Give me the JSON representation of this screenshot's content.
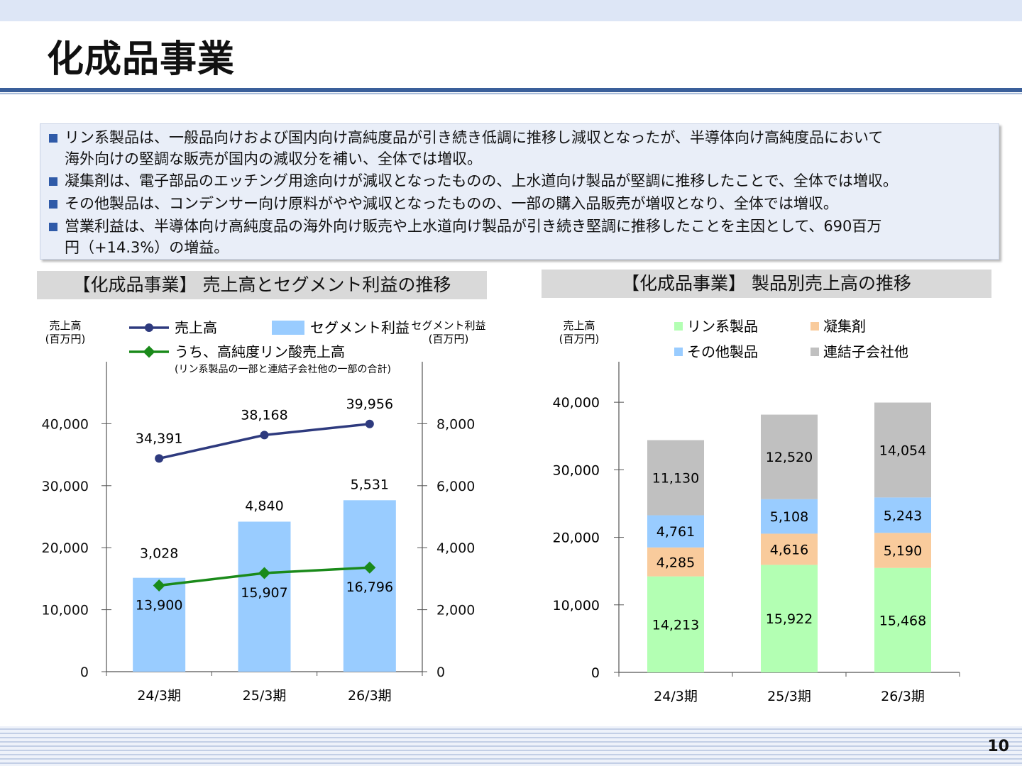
{
  "header": {
    "title": "化成品事業"
  },
  "summary": {
    "bullets": [
      {
        "line1": "リン系製品は、一般品向けおよび国内向け高純度品が引き続き低調に推移し減収となったが、半導体向け高純度品において",
        "line2": "海外向けの堅調な販売が国内の減収分を補い、全体では増収。"
      },
      {
        "line1": "凝集剤は、電子部品のエッチング用途向けが減収となったものの、上水道向け製品が堅調に推移したことで、全体では増収。",
        "line2": ""
      },
      {
        "line1": "その他製品は、コンデンサー向け原料がやや減収となったものの、一部の購入品販売が増収となり、全体では増収。",
        "line2": ""
      },
      {
        "line1": "営業利益は、半導体向け高純度品の海外向け販売や上水道向け製品が引き続き堅調に推移したことを主因として、690百万",
        "line2": "円（+14.3%）の増益。"
      }
    ]
  },
  "left_panel": {
    "header": "【化成品事業】 売上高とセグメント利益の推移"
  },
  "right_panel": {
    "header": "【化成品事業】 製品別売上高の推移"
  },
  "chart_data": [
    {
      "type": "bar",
      "categories": [
        "24/3期",
        "25/3期",
        "26/3期"
      ],
      "left_axis_label": [
        "売上高",
        "(百万円)"
      ],
      "right_axis_label": [
        "セグメント利益",
        "(百万円)"
      ],
      "left_ticks": [
        "0",
        "10,000",
        "20,000",
        "30,000",
        "40,000"
      ],
      "right_ticks": [
        "0",
        "2,000",
        "4,000",
        "6,000",
        "8,000"
      ],
      "ylim_left": [
        0,
        50000
      ],
      "ylim_right": [
        0,
        10000
      ],
      "series": [
        {
          "name": "セグメント利益",
          "kind": "bar",
          "axis": "right",
          "values": [
            3028,
            4840,
            5531
          ],
          "labels": [
            "3,028",
            "4,840",
            "5,531"
          ],
          "color": "#99ccff"
        },
        {
          "name": "売上高",
          "kind": "line",
          "axis": "left",
          "values": [
            34391,
            38168,
            39956
          ],
          "labels": [
            "34,391",
            "38,168",
            "39,956"
          ],
          "color": "#2e3a7e"
        },
        {
          "name": "うち、高純度リン酸売上高",
          "note": "(リン系製品の一部と連結子会社他の一部の合計)",
          "kind": "line",
          "axis": "left",
          "values": [
            13900,
            15907,
            16796
          ],
          "labels": [
            "13,900",
            "15,907",
            "16,796"
          ],
          "color": "#1a8a1a"
        }
      ]
    },
    {
      "type": "bar",
      "stacked": true,
      "categories": [
        "24/3期",
        "25/3期",
        "26/3期"
      ],
      "axis_label": [
        "売上高",
        "(百万円)"
      ],
      "ticks": [
        "0",
        "10,000",
        "20,000",
        "30,000",
        "40,000"
      ],
      "ylim": [
        0,
        46000
      ],
      "series": [
        {
          "name": "リン系製品",
          "values": [
            14213,
            15922,
            15468
          ],
          "labels": [
            "14,213",
            "15,922",
            "15,468"
          ],
          "color": "#b3ffb3"
        },
        {
          "name": "凝集剤",
          "values": [
            4285,
            4616,
            5190
          ],
          "labels": [
            "4,285",
            "4,616",
            "5,190"
          ],
          "color": "#f9cb9c"
        },
        {
          "name": "その他製品",
          "values": [
            4761,
            5108,
            5243
          ],
          "labels": [
            "4,761",
            "5,108",
            "5,243"
          ],
          "color": "#99ccff"
        },
        {
          "name": "連結子会社他",
          "values": [
            11130,
            12520,
            14054
          ],
          "labels": [
            "11,130",
            "12,520",
            "14,054"
          ],
          "color": "#c0c0c0"
        }
      ]
    }
  ],
  "footer": {
    "page_number": "10"
  }
}
